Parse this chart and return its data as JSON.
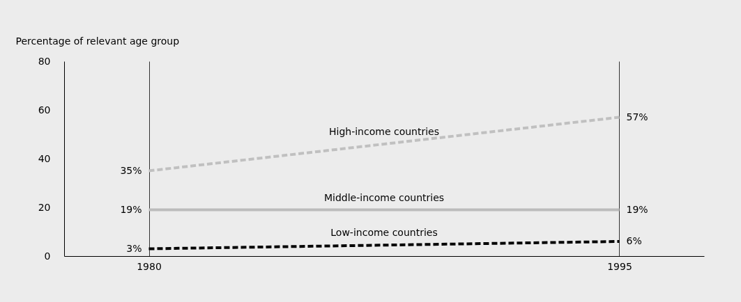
{
  "chart_data": {
    "type": "line",
    "ylabel": "Percentage of relevant age group",
    "x": [
      1980,
      1995
    ],
    "xlim": [
      1977.3,
      1997.7
    ],
    "xticks": [
      1980,
      1995
    ],
    "ylim": [
      0,
      80
    ],
    "yticks": [
      0,
      20,
      40,
      60,
      80
    ],
    "grid": "x",
    "marker": "none",
    "series": [
      {
        "name": "High-income countries",
        "color": "#c0c0c0",
        "line_style": "dashed",
        "values": [
          35,
          57
        ],
        "value_labels": [
          "35%",
          "57%"
        ]
      },
      {
        "name": "Middle-income countries",
        "color": "#bcbcbc",
        "line_style": "solid",
        "values": [
          19,
          19
        ],
        "value_labels": [
          "19%",
          "19%"
        ]
      },
      {
        "name": "Low-income countries",
        "color": "#000000",
        "line_style": "dashed",
        "values": [
          3,
          6
        ],
        "value_labels": [
          "3%",
          "6%"
        ]
      }
    ]
  }
}
